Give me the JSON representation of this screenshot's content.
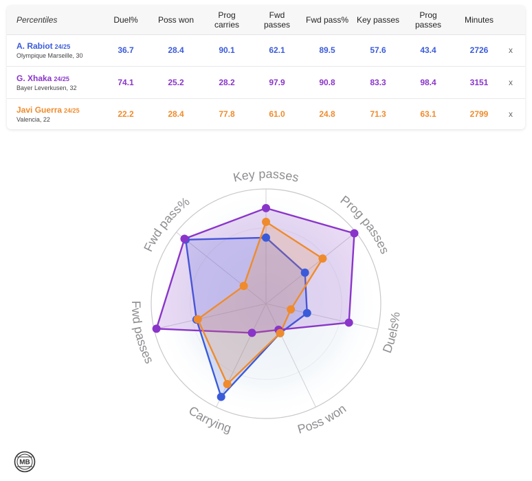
{
  "table": {
    "header_first": "Percentiles",
    "columns": [
      {
        "key": "duel",
        "label": [
          "Duel%"
        ]
      },
      {
        "key": "poss",
        "label": [
          "Poss won"
        ]
      },
      {
        "key": "carries",
        "label": [
          "Prog",
          "carries"
        ]
      },
      {
        "key": "fwd",
        "label": [
          "Fwd",
          "passes"
        ]
      },
      {
        "key": "fwdpct",
        "label": [
          "Fwd pass%"
        ]
      },
      {
        "key": "key",
        "label": [
          "Key passes"
        ]
      },
      {
        "key": "progp",
        "label": [
          "Prog",
          "passes"
        ]
      },
      {
        "key": "minutes",
        "label": [
          "Minutes"
        ]
      }
    ],
    "remove_label": "x",
    "rows": [
      {
        "name": "A. Rabiot",
        "season": "24/25",
        "club": "Olympique Marseille, 30",
        "color": "#3a5bd9",
        "values": [
          "36.7",
          "28.4",
          "90.1",
          "62.1",
          "89.5",
          "57.6",
          "43.4",
          "2726"
        ]
      },
      {
        "name": "G. Xhaka",
        "season": "24/25",
        "club": "Bayer Leverkusen, 32",
        "color": "#8a35c9",
        "values": [
          "74.1",
          "25.2",
          "28.2",
          "97.9",
          "90.8",
          "83.3",
          "98.4",
          "3151"
        ]
      },
      {
        "name": "Javi Guerra",
        "season": "24/25",
        "club": "Valencia, 22",
        "color": "#ef8b2c",
        "values": [
          "22.2",
          "28.4",
          "77.8",
          "61.0",
          "24.8",
          "71.3",
          "63.1",
          "2799"
        ]
      }
    ]
  },
  "chart_data": {
    "type": "radar",
    "axes": [
      "Key passes",
      "Prog passes",
      "Duels%",
      "Poss won",
      "Carrying",
      "Fwd passes",
      "Fwd pass%"
    ],
    "rlim": [
      0,
      100
    ],
    "series": [
      {
        "name": "A. Rabiot",
        "color": "#3a5bd9",
        "values": [
          57.6,
          43.4,
          36.7,
          28.4,
          90.1,
          62.1,
          89.5
        ]
      },
      {
        "name": "G. Xhaka",
        "color": "#8a35c9",
        "values": [
          83.3,
          98.4,
          74.1,
          25.2,
          28.2,
          97.9,
          90.8
        ]
      },
      {
        "name": "Javi Guerra",
        "color": "#ef8b2c",
        "values": [
          71.3,
          63.1,
          22.2,
          28.4,
          77.8,
          61.0,
          24.8
        ]
      }
    ]
  },
  "logo": {
    "text": "MB"
  }
}
